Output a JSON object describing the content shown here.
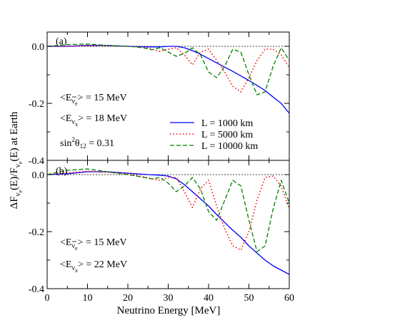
{
  "figure": {
    "ylabel_parts": {
      "delta_f": "ΔF",
      "nu": "ν",
      "e": "e",
      "paren_e": "(E)/F",
      "nu2": "ν",
      "e2": "e",
      "tail": "(E) at Earth"
    },
    "xlabel": "Neutrino Energy [MeV]"
  },
  "chart_data": [
    {
      "type": "line",
      "panel_label": "(a)",
      "xlim": [
        0,
        60
      ],
      "ylim": [
        -0.4,
        0.05
      ],
      "x_ticks": [
        "0",
        "10",
        "20",
        "30",
        "40",
        "50",
        "60"
      ],
      "y_ticks": [
        "0.0",
        "-0.2",
        "-0.4"
      ],
      "reference_line": 0,
      "annotations": {
        "e_nubar": {
          "lt": "<E",
          "sym": "ν",
          "sub": "e",
          "rest": "> = 15 MeV"
        },
        "e_nux": {
          "lt": "<E",
          "sym": "ν",
          "sub": "x",
          "rest": "> = 18 MeV"
        },
        "sin": {
          "pre": "sin",
          "exp": "2",
          "theta": "θ",
          "sub": "12",
          "rest": " = 0.31"
        }
      },
      "legend": {
        "placement": "bottom-right",
        "entries": [
          "L = 1000 km",
          "L = 5000 km",
          "L = 10000 km"
        ]
      },
      "series": [
        {
          "name": "L = 1000 km",
          "color": "#0000ff",
          "style": "solid",
          "x": [
            0,
            5,
            10,
            15,
            20,
            25,
            28,
            30,
            32,
            34,
            36,
            38,
            40,
            42,
            44,
            46,
            48,
            50,
            52,
            54,
            56,
            58,
            60
          ],
          "y": [
            0.0,
            0.0,
            0.003,
            0.003,
            0.0,
            -0.002,
            -0.002,
            0.0,
            0.0,
            -0.005,
            -0.015,
            -0.028,
            -0.043,
            -0.058,
            -0.073,
            -0.088,
            -0.104,
            -0.12,
            -0.137,
            -0.155,
            -0.178,
            -0.2,
            -0.235
          ]
        },
        {
          "name": "L = 5000 km",
          "color": "#ff0000",
          "style": "dotted",
          "x": [
            0,
            5,
            10,
            15,
            20,
            22,
            24,
            26,
            28,
            30,
            32,
            34,
            36,
            38,
            40,
            42,
            44,
            46,
            48,
            50,
            52,
            54,
            56,
            58,
            60
          ],
          "y": [
            0.0,
            0.0,
            0.003,
            0.002,
            0.0,
            -0.002,
            -0.004,
            -0.01,
            -0.018,
            -0.01,
            -0.005,
            -0.03,
            -0.065,
            -0.02,
            -0.01,
            -0.05,
            -0.09,
            -0.14,
            -0.16,
            -0.11,
            -0.05,
            -0.01,
            -0.01,
            -0.03,
            -0.075
          ]
        },
        {
          "name": "L = 10000 km",
          "color": "#008000",
          "style": "dashed",
          "x": [
            0,
            5,
            10,
            15,
            20,
            22,
            24,
            26,
            28,
            30,
            32,
            34,
            36,
            38,
            40,
            42,
            44,
            46,
            48,
            50,
            52,
            54,
            56,
            58,
            60
          ],
          "y": [
            0.0,
            0.006,
            0.008,
            0.003,
            0.0,
            -0.002,
            -0.006,
            -0.012,
            -0.005,
            -0.02,
            -0.035,
            -0.025,
            -0.005,
            -0.03,
            -0.09,
            -0.11,
            -0.07,
            -0.01,
            -0.02,
            -0.1,
            -0.17,
            -0.16,
            -0.07,
            -0.005,
            -0.05
          ]
        }
      ]
    },
    {
      "type": "line",
      "panel_label": "(b)",
      "xlim": [
        0,
        60
      ],
      "ylim": [
        -0.4,
        0.05
      ],
      "x_ticks": [
        "0",
        "10",
        "20",
        "30",
        "40",
        "50",
        "60"
      ],
      "y_ticks": [
        "0.0",
        "-0.2",
        "-0.4"
      ],
      "reference_line": 0,
      "annotations": {
        "e_nubar": {
          "lt": "<E",
          "sym": "ν",
          "sub": "e",
          "rest": "> = 15 MeV"
        },
        "e_nux": {
          "lt": "<E",
          "sym": "ν",
          "sub": "x",
          "rest": "> = 22 MeV"
        }
      },
      "series": [
        {
          "name": "L = 1000 km",
          "color": "#0000ff",
          "style": "solid",
          "x": [
            0,
            5,
            10,
            15,
            20,
            25,
            28,
            30,
            32,
            34,
            36,
            38,
            40,
            42,
            44,
            46,
            48,
            50,
            52,
            54,
            56,
            58,
            60
          ],
          "y": [
            0.0,
            0.003,
            0.01,
            0.01,
            0.005,
            0.0,
            -0.002,
            -0.005,
            -0.015,
            -0.035,
            -0.06,
            -0.085,
            -0.11,
            -0.14,
            -0.168,
            -0.195,
            -0.22,
            -0.25,
            -0.275,
            -0.3,
            -0.32,
            -0.335,
            -0.35
          ]
        },
        {
          "name": "L = 5000 km",
          "color": "#ff0000",
          "style": "dotted",
          "x": [
            0,
            5,
            10,
            15,
            20,
            22,
            24,
            26,
            28,
            30,
            32,
            34,
            36,
            38,
            40,
            42,
            44,
            46,
            48,
            50,
            52,
            54,
            56,
            58,
            60
          ],
          "y": [
            0.0,
            0.006,
            0.012,
            0.008,
            0.003,
            -0.003,
            -0.008,
            -0.015,
            -0.02,
            -0.01,
            -0.01,
            -0.06,
            -0.115,
            -0.05,
            -0.02,
            -0.11,
            -0.19,
            -0.25,
            -0.265,
            -0.2,
            -0.09,
            -0.01,
            -0.005,
            -0.04,
            -0.12
          ]
        },
        {
          "name": "L = 10000 km",
          "color": "#008000",
          "style": "dashed",
          "x": [
            0,
            5,
            10,
            15,
            20,
            22,
            24,
            26,
            28,
            30,
            32,
            34,
            36,
            38,
            40,
            42,
            44,
            46,
            48,
            50,
            52,
            54,
            56,
            58,
            60
          ],
          "y": [
            0.0,
            0.015,
            0.02,
            0.01,
            0.0,
            -0.005,
            -0.01,
            -0.015,
            -0.01,
            -0.03,
            -0.06,
            -0.04,
            -0.01,
            -0.05,
            -0.13,
            -0.16,
            -0.09,
            -0.02,
            -0.04,
            -0.16,
            -0.27,
            -0.25,
            -0.12,
            -0.02,
            -0.1
          ]
        }
      ]
    }
  ]
}
